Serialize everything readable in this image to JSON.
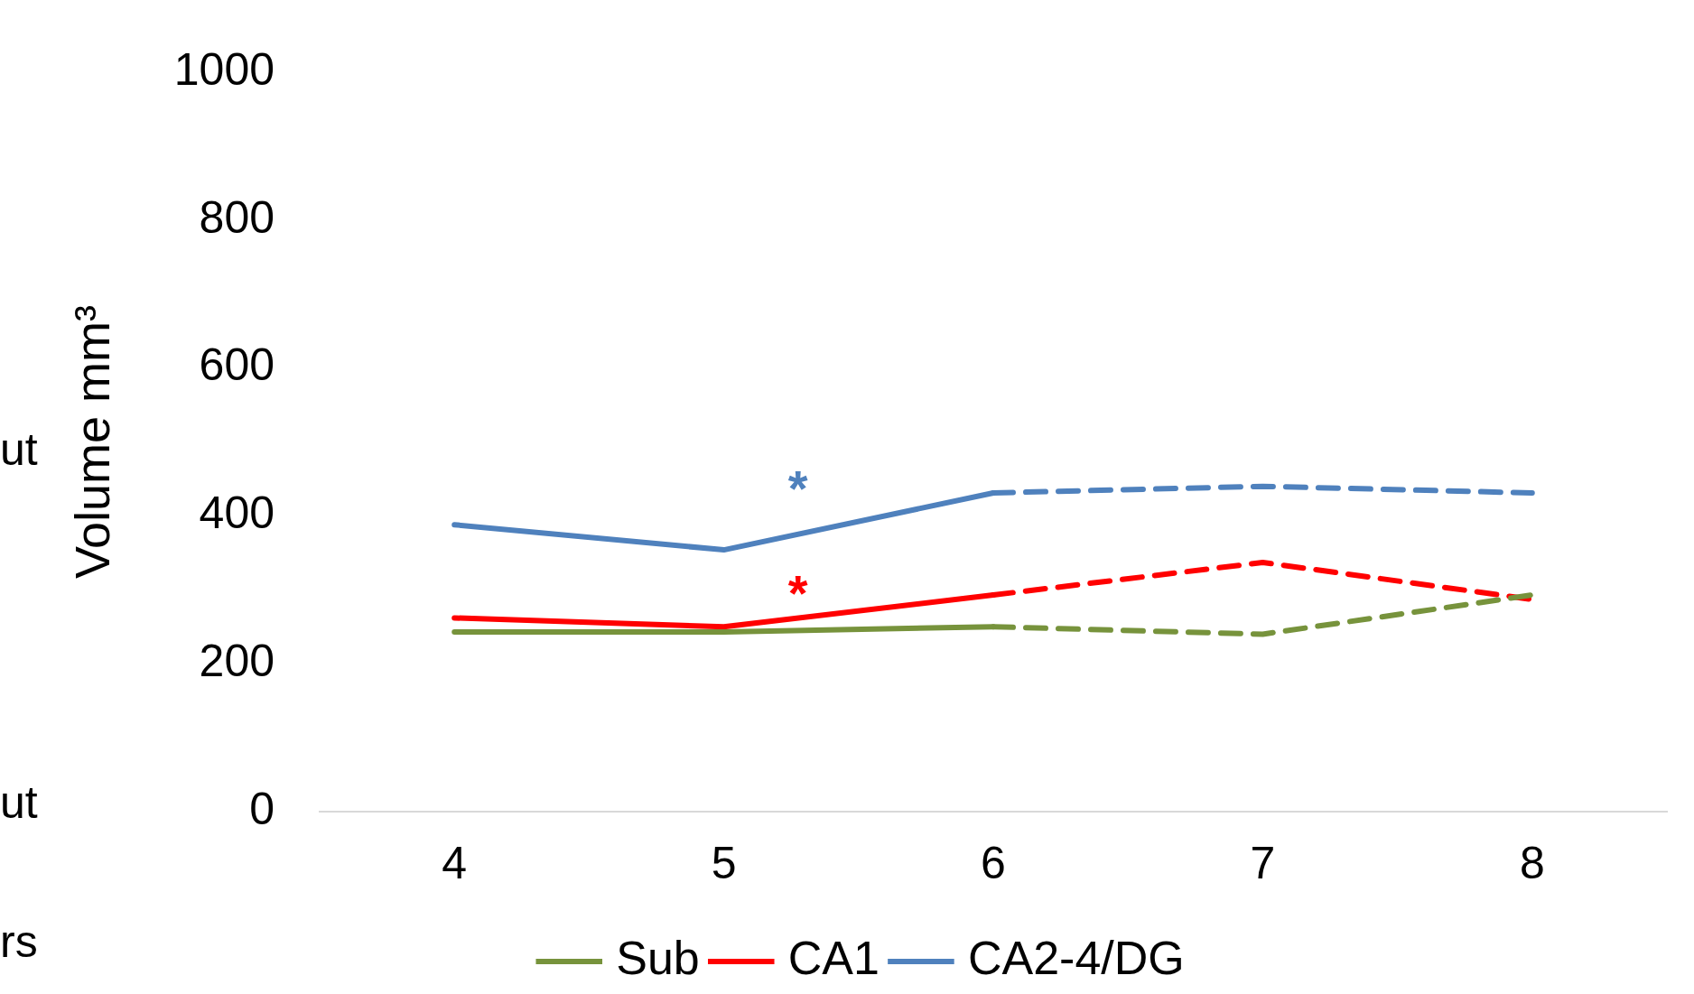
{
  "chart_data": {
    "type": "line",
    "ylabel": "Volume mm³",
    "x": [
      4,
      5,
      6,
      7,
      8
    ],
    "xlim": [
      3.5,
      8.5
    ],
    "xticks": [
      4,
      5,
      6,
      7,
      8
    ],
    "ylim": [
      0,
      1000
    ],
    "yticks": [
      0,
      200,
      400,
      600,
      800,
      1000
    ],
    "grid": false,
    "legend": "bottom",
    "marker": "none",
    "series": [
      {
        "name": "Sub",
        "color": "#77933c",
        "line_style": "solid",
        "values": [
          243,
          243,
          250,
          null,
          null
        ]
      },
      {
        "name": "CA1",
        "color": "#ff0000",
        "line_style": "solid",
        "values": [
          262,
          250,
          293,
          null,
          null
        ]
      },
      {
        "name": "CA2-4/DG",
        "color": "#4f81bd",
        "line_style": "solid",
        "values": [
          388,
          354,
          431,
          null,
          null
        ]
      },
      {
        "color": "#77933c",
        "line_style": "dashed",
        "values": [
          null,
          null,
          250,
          240,
          293
        ]
      },
      {
        "color": "#ff0000",
        "line_style": "dashed",
        "values": [
          null,
          null,
          293,
          337,
          287
        ]
      },
      {
        "color": "#4f81bd",
        "line_style": "dashed",
        "values": [
          null,
          null,
          431,
          440,
          431
        ]
      }
    ],
    "annotations": [
      "*",
      "*",
      "ut",
      "ut",
      "rs"
    ]
  }
}
